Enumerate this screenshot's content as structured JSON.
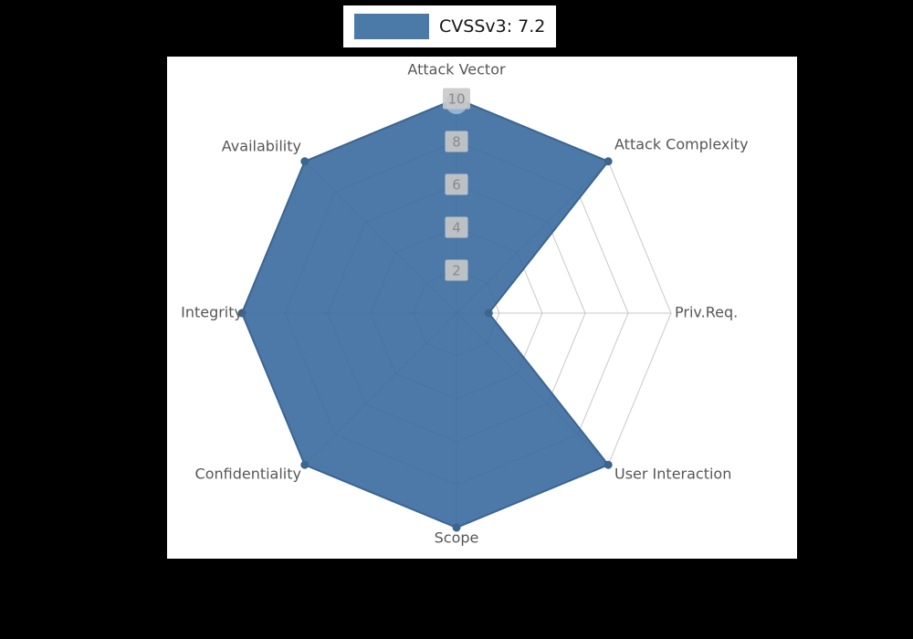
{
  "background": {
    "page": "#000000",
    "panel": "#ffffff"
  },
  "chart_data": {
    "type": "radar",
    "title": "CVSSv3: 7.2",
    "axes": [
      "Attack Vector",
      "Attack Complexity",
      "Priv.Req.",
      "User Interaction",
      "Scope",
      "Confidentiality",
      "Integrity",
      "Availability"
    ],
    "values": [
      10,
      10,
      1.5,
      10,
      10,
      10,
      10,
      10
    ],
    "ticks": [
      2,
      4,
      6,
      8,
      10
    ],
    "max": 10,
    "ylim": [
      0,
      10
    ],
    "legend_position": "top-center",
    "grid": "on",
    "fill_color": "#4b79a8",
    "fill_base_color": "#33679c",
    "stroke_color": "#3c6590",
    "marker_color": "#3c6590",
    "accent_marker_color": "#9dbbd6",
    "grid_color": "#c9c9c9",
    "tick_box_color": "#c9c9c9",
    "tick_text_color": "#8a8a8a",
    "label_color": "#565656",
    "title_color": "#151515"
  }
}
